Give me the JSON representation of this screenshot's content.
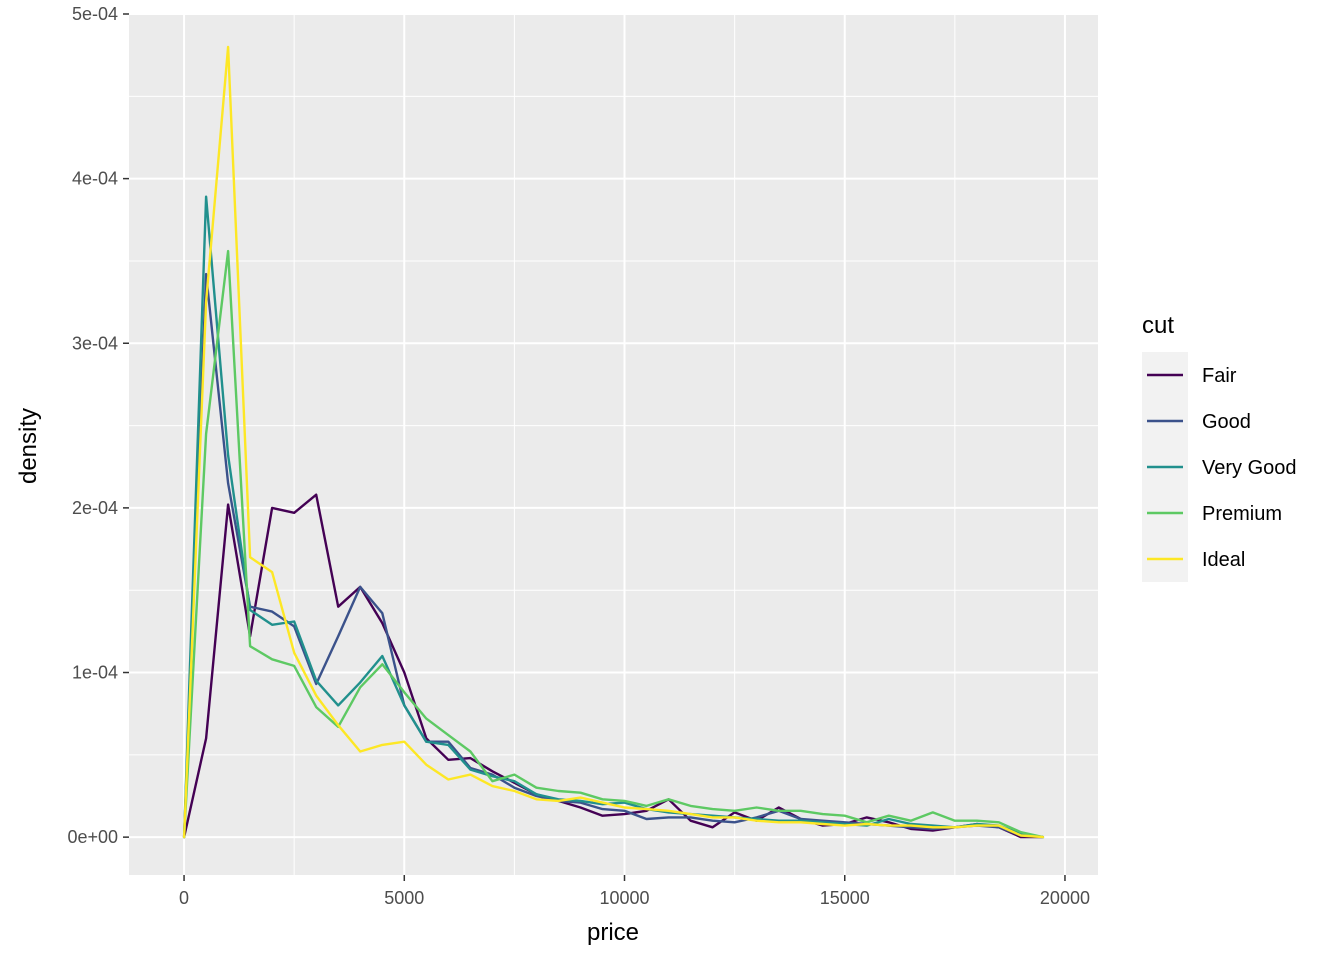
{
  "chart_data": {
    "type": "line",
    "xlabel": "price",
    "ylabel": "density",
    "xlim": [
      -1250,
      20750
    ],
    "ylim": [
      -2.3e-05,
      0.0005
    ],
    "x_ticks": [
      0,
      5000,
      10000,
      15000,
      20000
    ],
    "x_tick_labels": [
      "0",
      "5000",
      "10000",
      "15000",
      "20000"
    ],
    "y_ticks": [
      0,
      0.0001,
      0.0002,
      0.0003,
      0.0004,
      0.0005
    ],
    "y_tick_labels": [
      "0e+00",
      "1e-04",
      "2e-04",
      "3e-04",
      "4e-04",
      "5e-04"
    ],
    "grid": true,
    "legend": {
      "title": "cut",
      "position": "right",
      "entries": [
        "Fair",
        "Good",
        "Very Good",
        "Premium",
        "Ideal"
      ]
    },
    "x": [
      0,
      500,
      1000,
      1500,
      2000,
      2500,
      3000,
      3500,
      4000,
      4500,
      5000,
      5500,
      6000,
      6500,
      7000,
      7500,
      8000,
      8500,
      9000,
      9500,
      10000,
      10500,
      11000,
      11500,
      12000,
      12500,
      13000,
      13500,
      14000,
      14500,
      15000,
      15500,
      16000,
      16500,
      17000,
      17500,
      18000,
      18500,
      19000,
      19500
    ],
    "series": [
      {
        "name": "Fair",
        "color": "#440154",
        "values": [
          0,
          6e-05,
          0.000202,
          0.000122,
          0.0002,
          0.000197,
          0.000208,
          0.00014,
          0.000152,
          0.00013,
          0.0001,
          6e-05,
          4.7e-05,
          4.8e-05,
          4e-05,
          3.3e-05,
          2.6e-05,
          2.2e-05,
          1.8e-05,
          1.3e-05,
          1.4e-05,
          1.6e-05,
          2.3e-05,
          1e-05,
          6e-06,
          1.5e-05,
          1e-05,
          1.8e-05,
          1.1e-05,
          7e-06,
          8e-06,
          1.2e-05,
          9e-06,
          5e-06,
          4e-06,
          6e-06,
          8e-06,
          6e-06,
          0,
          0
        ]
      },
      {
        "name": "Good",
        "color": "#3b528b",
        "values": [
          0,
          0.000342,
          0.000215,
          0.00014,
          0.000137,
          0.000128,
          9.3e-05,
          0.000122,
          0.000152,
          0.000136,
          8e-05,
          5.8e-05,
          5.8e-05,
          4.2e-05,
          3.8e-05,
          3e-05,
          2.5e-05,
          2.2e-05,
          2.1e-05,
          1.7e-05,
          1.6e-05,
          1.1e-05,
          1.2e-05,
          1.2e-05,
          1e-05,
          9e-06,
          1.2e-05,
          1.6e-05,
          1.1e-05,
          1e-05,
          9e-06,
          8e-06,
          7e-06,
          6e-06,
          5e-06,
          6e-06,
          7e-06,
          6e-06,
          1e-06,
          0
        ]
      },
      {
        "name": "Very Good",
        "color": "#21908d",
        "values": [
          0,
          0.000389,
          0.000232,
          0.000138,
          0.000129,
          0.000131,
          9.5e-05,
          8e-05,
          9.4e-05,
          0.00011,
          8e-05,
          5.8e-05,
          5.6e-05,
          4.1e-05,
          3.7e-05,
          3.4e-05,
          2.6e-05,
          2.3e-05,
          2.2e-05,
          2e-05,
          2.1e-05,
          1.7e-05,
          1.5e-05,
          1.4e-05,
          1.3e-05,
          1.2e-05,
          1.1e-05,
          1e-05,
          1e-05,
          9e-06,
          8e-06,
          7e-06,
          1.1e-05,
          8e-06,
          7e-06,
          6e-06,
          8e-06,
          7e-06,
          2e-06,
          0
        ]
      },
      {
        "name": "Premium",
        "color": "#5dc963",
        "values": [
          0,
          0.000245,
          0.000356,
          0.000116,
          0.000108,
          0.000104,
          7.9e-05,
          6.7e-05,
          9.1e-05,
          0.000105,
          8.8e-05,
          7.2e-05,
          6.2e-05,
          5.2e-05,
          3.4e-05,
          3.8e-05,
          3e-05,
          2.8e-05,
          2.7e-05,
          2.3e-05,
          2.2e-05,
          1.9e-05,
          2.3e-05,
          1.9e-05,
          1.7e-05,
          1.6e-05,
          1.8e-05,
          1.6e-05,
          1.6e-05,
          1.4e-05,
          1.3e-05,
          9e-06,
          1.3e-05,
          1e-05,
          1.5e-05,
          1e-05,
          1e-05,
          9e-06,
          3e-06,
          0
        ]
      },
      {
        "name": "Ideal",
        "color": "#fde725",
        "values": [
          0,
          0.000325,
          0.00048,
          0.00017,
          0.000161,
          0.000112,
          8.6e-05,
          6.8e-05,
          5.2e-05,
          5.6e-05,
          5.8e-05,
          4.4e-05,
          3.5e-05,
          3.8e-05,
          3.1e-05,
          2.8e-05,
          2.3e-05,
          2.2e-05,
          2.4e-05,
          2.1e-05,
          1.8e-05,
          1.7e-05,
          1.6e-05,
          1.4e-05,
          1.2e-05,
          1.2e-05,
          1e-05,
          9e-06,
          9e-06,
          8e-06,
          7e-06,
          8e-06,
          7e-06,
          7e-06,
          6e-06,
          6e-06,
          7e-06,
          7e-06,
          1e-06,
          0
        ]
      }
    ]
  }
}
